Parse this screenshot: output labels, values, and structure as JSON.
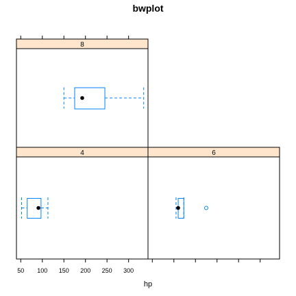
{
  "title": "bwplot",
  "xlabel": "hp",
  "colors": {
    "box": "#0080ff",
    "strip": "#ffe5cc",
    "median": "#000000",
    "outlier": "#0080ff"
  },
  "x_ticks": [
    50,
    100,
    150,
    200,
    250,
    300
  ],
  "chart_data": {
    "type": "box",
    "xlabel": "hp",
    "xlim": [
      40,
      345
    ],
    "panels": [
      {
        "name": "8",
        "min": 150,
        "q1": 175,
        "median": 192.5,
        "q3": 245,
        "max": 335,
        "outliers": []
      },
      {
        "name": "4",
        "min": 52,
        "q1": 65,
        "median": 91,
        "q3": 97,
        "max": 113,
        "outliers": []
      },
      {
        "name": "6",
        "min": 105,
        "q1": 110,
        "median": 110,
        "q3": 123,
        "max": 123,
        "outliers": [
          175
        ]
      }
    ]
  }
}
